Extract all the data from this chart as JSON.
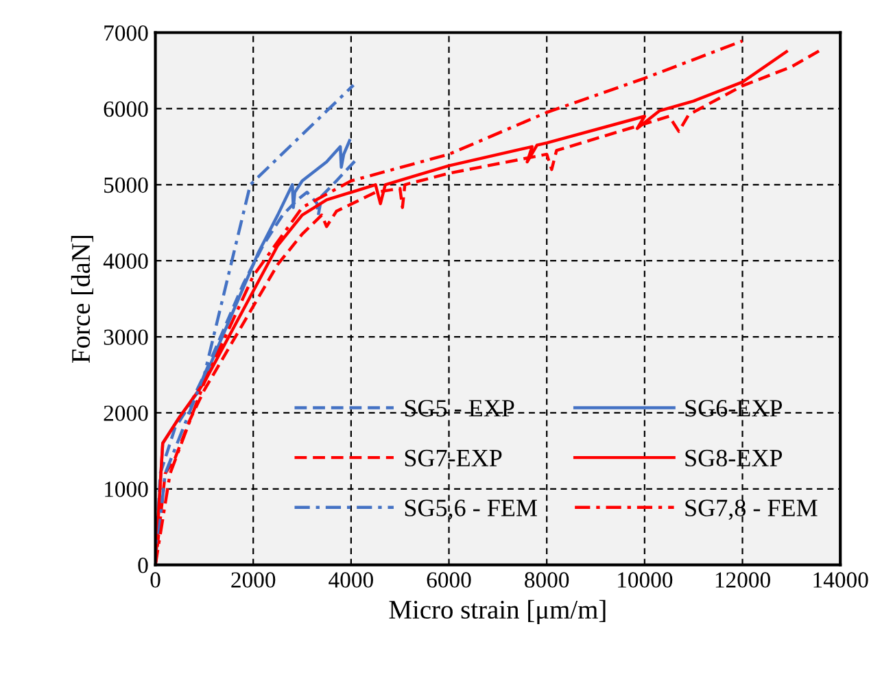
{
  "chart_data": {
    "type": "line",
    "xlabel": "Micro strain [μm/m]",
    "ylabel": "Force [daN]",
    "xlim": [
      0,
      14000
    ],
    "ylim": [
      0,
      7000
    ],
    "xticks": [
      0,
      2000,
      4000,
      6000,
      8000,
      10000,
      12000,
      14000
    ],
    "yticks": [
      0,
      1000,
      2000,
      3000,
      4000,
      5000,
      6000,
      7000
    ],
    "grid": true,
    "legend": "bottom right",
    "series": [
      {
        "name": "SG5 - EXP",
        "color": "#4472c4",
        "line_style": "dashed",
        "x": [
          0,
          100,
          250,
          400,
          700,
          1000,
          1400,
          1800,
          2200,
          2600,
          2900,
          3100,
          3300,
          3330,
          3400,
          3700,
          4150
        ],
        "values": [
          0,
          1200,
          1500,
          1800,
          2100,
          2500,
          3100,
          3700,
          4200,
          4600,
          4800,
          4900,
          4760,
          4600,
          4850,
          5050,
          5360
        ]
      },
      {
        "name": "SG6-EXP",
        "color": "#4472c4",
        "line_style": "solid",
        "x": [
          0,
          150,
          500,
          900,
          1300,
          1700,
          2100,
          2500,
          2800,
          2820,
          2850,
          3000,
          3500,
          3780,
          3800,
          3850,
          3970
        ],
        "values": [
          0,
          1600,
          1950,
          2300,
          2900,
          3500,
          4100,
          4600,
          5000,
          4700,
          4900,
          5050,
          5300,
          5500,
          5230,
          5400,
          5580
        ]
      },
      {
        "name": "SG7-EXP",
        "color": "#ff0000",
        "line_style": "dashed",
        "x": [
          0,
          200,
          400,
          700,
          1000,
          1500,
          2000,
          2500,
          3000,
          3400,
          3500,
          3700,
          4500,
          5000,
          5050,
          5100,
          6000,
          8000,
          8100,
          8200,
          10000,
          10500,
          10700,
          10900,
          12000,
          13000,
          13570
        ],
        "values": [
          0,
          1200,
          1400,
          1900,
          2300,
          2850,
          3400,
          3950,
          4350,
          4600,
          4450,
          4650,
          4900,
          4950,
          4700,
          5000,
          5150,
          5400,
          5200,
          5450,
          5800,
          5900,
          5700,
          5920,
          6300,
          6550,
          6760
        ]
      },
      {
        "name": "SG8-EXP",
        "color": "#ff0000",
        "line_style": "solid",
        "x": [
          0,
          150,
          500,
          1000,
          1500,
          2000,
          2500,
          3000,
          3500,
          4500,
          4600,
          4700,
          6000,
          7700,
          7600,
          7800,
          8000,
          10000,
          9850,
          10300,
          11000,
          12000,
          12900
        ],
        "values": [
          0,
          1600,
          1950,
          2400,
          3000,
          3600,
          4200,
          4600,
          4800,
          5000,
          4750,
          5000,
          5250,
          5500,
          5300,
          5520,
          5550,
          5900,
          5740,
          5970,
          6100,
          6350,
          6750
        ]
      },
      {
        "name": "SG5,6 - FEM",
        "color": "#4472c4",
        "line_style": "dashdot",
        "x": [
          0,
          200,
          1000,
          1940,
          4050
        ],
        "values": [
          0,
          1200,
          2500,
          5000,
          6310
        ]
      },
      {
        "name": "SG7,8 - FEM",
        "color": "#ff0000",
        "line_style": "dashdot",
        "x": [
          0,
          300,
          1000,
          2000,
          3000,
          4000,
          6000,
          8000,
          10000,
          12000
        ],
        "values": [
          0,
          1200,
          2400,
          3800,
          4700,
          5050,
          5400,
          5950,
          6400,
          6890
        ]
      }
    ]
  }
}
